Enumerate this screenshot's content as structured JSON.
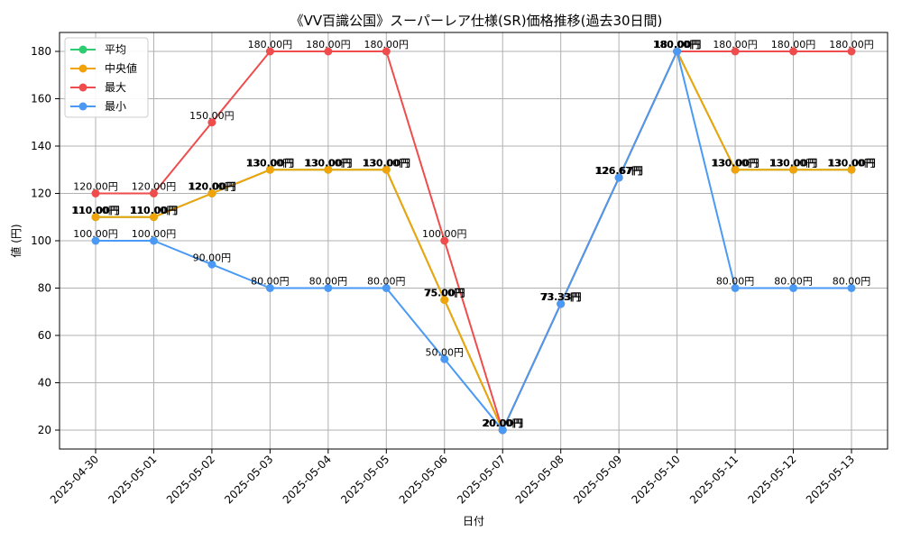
{
  "chart_data": {
    "type": "line",
    "title": "《VV百識公国》スーパーレア仕様(SR)価格推移(過去30日間)",
    "xlabel": "日付",
    "ylabel": "値 (円)",
    "ylim": [
      12,
      188
    ],
    "yticks": [
      20,
      40,
      60,
      80,
      100,
      120,
      140,
      160,
      180
    ],
    "grid": true,
    "legend_position": "top-left",
    "value_suffix": "円",
    "categories": [
      "2025-04-30",
      "2025-05-01",
      "2025-05-02",
      "2025-05-03",
      "2025-05-04",
      "2025-05-05",
      "2025-05-06",
      "2025-05-07",
      "2025-05-08",
      "2025-05-09",
      "2025-05-10",
      "2025-05-11",
      "2025-05-12",
      "2025-05-13"
    ],
    "series": [
      {
        "name": "平均",
        "color": "#2ecc71",
        "values": [
          110,
          110,
          120,
          130,
          130,
          130,
          75,
          20,
          73.33,
          126.67,
          180,
          130,
          130,
          130
        ],
        "labels": true,
        "bold": true
      },
      {
        "name": "中央値",
        "color": "#f0a30a",
        "values": [
          110,
          110,
          120,
          130,
          130,
          130,
          75,
          20,
          73.33,
          126.67,
          180,
          130,
          130,
          130
        ],
        "labels": true,
        "bold": false
      },
      {
        "name": "最大",
        "color": "#ef4d4d",
        "values": [
          120,
          120,
          150,
          180,
          180,
          180,
          100,
          20,
          73.33,
          126.67,
          180,
          180,
          180,
          180
        ],
        "labels": true,
        "bold": false
      },
      {
        "name": "最小",
        "color": "#4a9af5",
        "values": [
          100,
          100,
          90,
          80,
          80,
          80,
          50,
          20,
          73.33,
          126.67,
          180,
          80,
          80,
          80
        ],
        "labels": true,
        "bold": false
      }
    ]
  }
}
